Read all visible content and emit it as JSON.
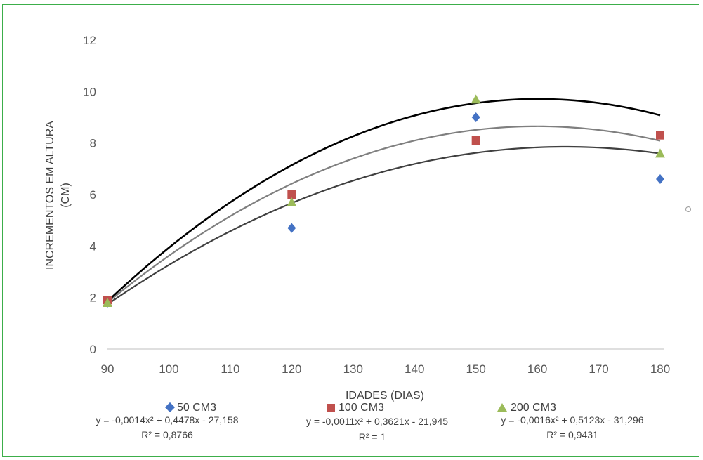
{
  "chart_data": {
    "type": "scatter",
    "xlabel": "IDADES (DIAS)",
    "ylabel_lines": [
      "INCREMENTOS EM ALTURA",
      "(CM)"
    ],
    "xlim": [
      90,
      180
    ],
    "ylim": [
      0,
      12
    ],
    "x_ticks": [
      90,
      100,
      110,
      120,
      130,
      140,
      150,
      160,
      170,
      180
    ],
    "y_ticks": [
      0,
      2,
      4,
      6,
      8,
      10,
      12
    ],
    "grid": false,
    "legend_position": "bottom",
    "series": [
      {
        "name": "50 CM3",
        "marker": "diamond",
        "color": "#4472c4",
        "trend_color": "#7f7f7f",
        "x": [
          90,
          120,
          150,
          180
        ],
        "y": [
          1.8,
          4.7,
          9.0,
          6.6
        ],
        "equation": "y = -0,0014x² + 0,4478x - 27,158",
        "r2": "R² = 0,8766",
        "coef": [
          -0.0014,
          0.4478,
          -27.158
        ]
      },
      {
        "name": "100 CM3",
        "marker": "square",
        "color": "#c0504d",
        "trend_color": "#404040",
        "x": [
          90,
          120,
          150,
          180
        ],
        "y": [
          1.9,
          6.0,
          8.1,
          8.3
        ],
        "equation": "y = -0,0011x² + 0,3621x - 21,945",
        "r2": "R² = 1",
        "coef": [
          -0.0011,
          0.3621,
          -21.945
        ]
      },
      {
        "name": "200 CM3",
        "marker": "triangle",
        "color": "#9bbb59",
        "trend_color": "#000000",
        "x": [
          90,
          120,
          150,
          180
        ],
        "y": [
          1.8,
          5.7,
          9.7,
          7.6
        ],
        "equation": "y = -0,0016x² + 0,5123x - 31,296",
        "r2": "R² = 0,9431",
        "coef": [
          -0.0016,
          0.5123,
          -31.296
        ]
      }
    ]
  }
}
